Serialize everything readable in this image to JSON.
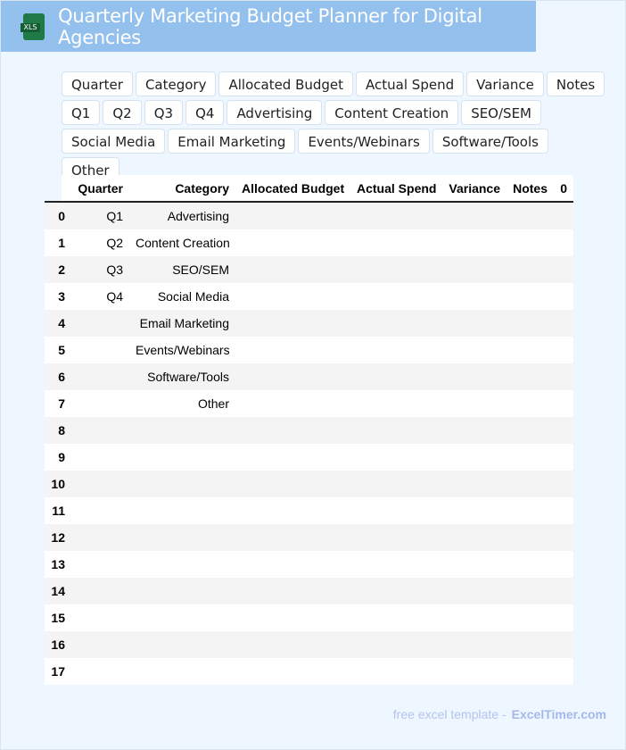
{
  "header": {
    "title": "Quarterly Marketing Budget Planner for Digital Agencies",
    "logo_text": "XLS"
  },
  "tags": [
    "Quarter",
    "Category",
    "Allocated Budget",
    "Actual Spend",
    "Variance",
    "Notes",
    "Q1",
    "Q2",
    "Q3",
    "Q4",
    "Advertising",
    "Content Creation",
    "SEO/SEM",
    "Social Media",
    "Email Marketing",
    "Events/Webinars",
    "Software/Tools",
    "Other"
  ],
  "table": {
    "columns": [
      "",
      "Quarter",
      "Category",
      "Allocated Budget",
      "Actual Spend",
      "Variance",
      "Notes",
      "0"
    ],
    "rows": [
      [
        "0",
        "Q1",
        "Advertising",
        "",
        "",
        "",
        "",
        ""
      ],
      [
        "1",
        "Q2",
        "Content Creation",
        "",
        "",
        "",
        "",
        ""
      ],
      [
        "2",
        "Q3",
        "SEO/SEM",
        "",
        "",
        "",
        "",
        ""
      ],
      [
        "3",
        "Q4",
        "Social Media",
        "",
        "",
        "",
        "",
        ""
      ],
      [
        "4",
        "",
        "Email Marketing",
        "",
        "",
        "",
        "",
        ""
      ],
      [
        "5",
        "",
        "Events/Webinars",
        "",
        "",
        "",
        "",
        ""
      ],
      [
        "6",
        "",
        "Software/Tools",
        "",
        "",
        "",
        "",
        ""
      ],
      [
        "7",
        "",
        "Other",
        "",
        "",
        "",
        "",
        ""
      ],
      [
        "8",
        "",
        "",
        "",
        "",
        "",
        "",
        ""
      ],
      [
        "9",
        "",
        "",
        "",
        "",
        "",
        "",
        ""
      ],
      [
        "10",
        "",
        "",
        "",
        "",
        "",
        "",
        ""
      ],
      [
        "11",
        "",
        "",
        "",
        "",
        "",
        "",
        ""
      ],
      [
        "12",
        "",
        "",
        "",
        "",
        "",
        "",
        ""
      ],
      [
        "13",
        "",
        "",
        "",
        "",
        "",
        "",
        ""
      ],
      [
        "14",
        "",
        "",
        "",
        "",
        "",
        "",
        ""
      ],
      [
        "15",
        "",
        "",
        "",
        "",
        "",
        "",
        ""
      ],
      [
        "16",
        "",
        "",
        "",
        "",
        "",
        "",
        ""
      ],
      [
        "17",
        "",
        "",
        "",
        "",
        "",
        "",
        ""
      ]
    ]
  },
  "footer": {
    "text": "free excel template -",
    "brand": "ExcelTimer.com"
  }
}
